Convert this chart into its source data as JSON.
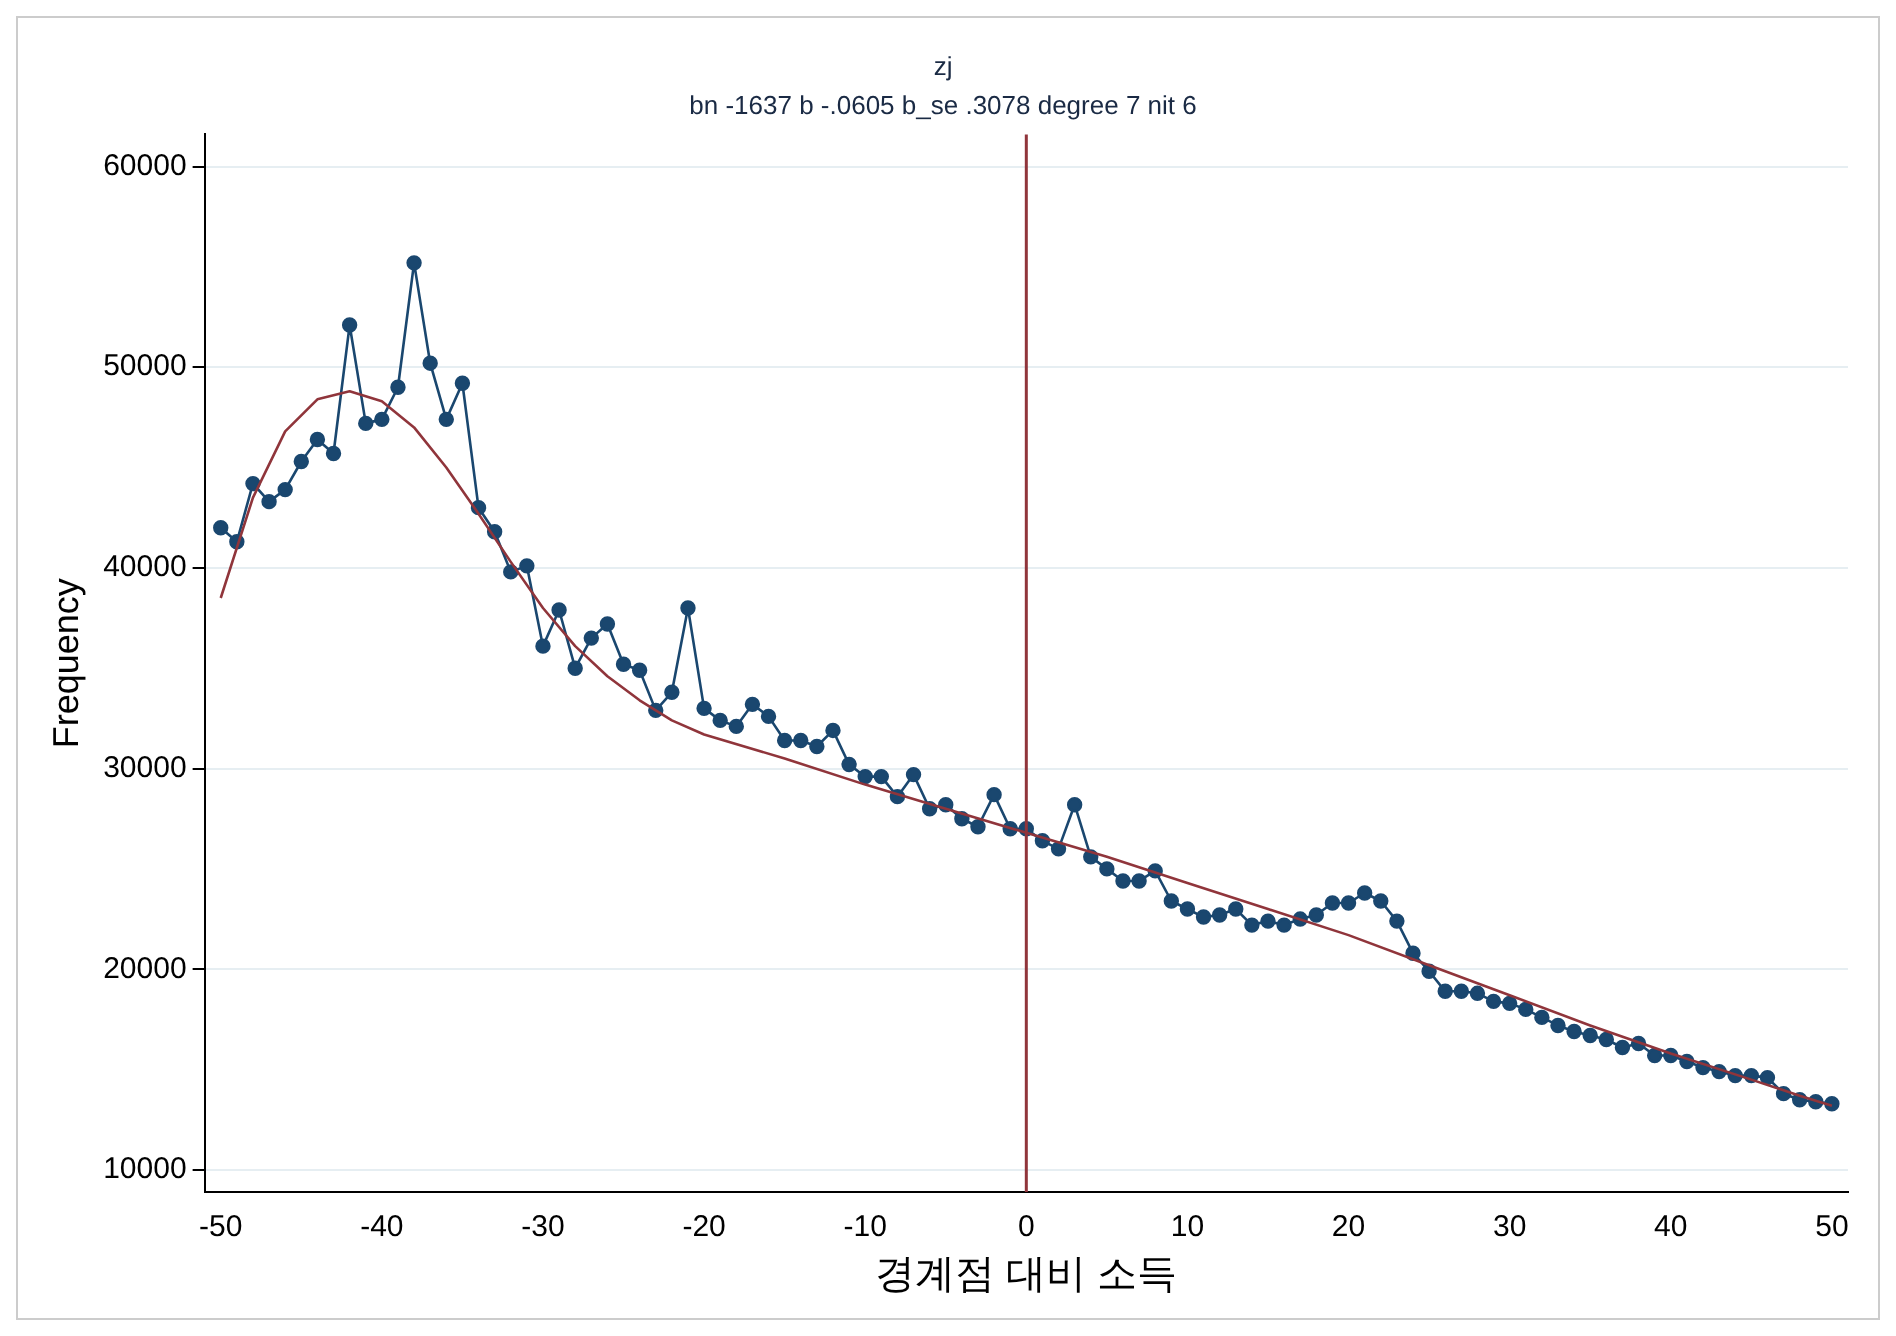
{
  "chart_data": {
    "type": "line",
    "title": "zj",
    "subtitle": "bn -1637 b -.0605 b_se .3078 degree 7 nit 6",
    "xlabel": "경계점 대비 소득",
    "ylabel": "Frequency",
    "x": [
      -50,
      -49,
      -48,
      -47,
      -46,
      -45,
      -44,
      -43,
      -42,
      -41,
      -40,
      -39,
      -38,
      -37,
      -36,
      -35,
      -34,
      -33,
      -32,
      -31,
      -30,
      -29,
      -28,
      -27,
      -26,
      -25,
      -24,
      -23,
      -22,
      -21,
      -20,
      -19,
      -18,
      -17,
      -16,
      -15,
      -14,
      -13,
      -12,
      -11,
      -10,
      -9,
      -8,
      -7,
      -6,
      -5,
      -4,
      -3,
      -2,
      -1,
      0,
      1,
      2,
      3,
      4,
      5,
      6,
      7,
      8,
      9,
      10,
      11,
      12,
      13,
      14,
      15,
      16,
      17,
      18,
      19,
      20,
      21,
      22,
      23,
      24,
      25,
      26,
      27,
      28,
      29,
      30,
      31,
      32,
      33,
      34,
      35,
      36,
      37,
      38,
      39,
      40,
      41,
      42,
      43,
      44,
      45,
      46,
      47,
      48,
      49,
      50
    ],
    "series": [
      {
        "color": "#1a476f",
        "marker": "circle",
        "values": [
          42000,
          41300,
          44200,
          43300,
          43900,
          45300,
          46400,
          45700,
          52100,
          47200,
          47400,
          49000,
          55200,
          50200,
          47400,
          49200,
          43000,
          41800,
          39800,
          40100,
          36100,
          37900,
          35000,
          36500,
          37200,
          35200,
          34900,
          32900,
          33800,
          38000,
          33000,
          32400,
          32100,
          33200,
          32600,
          31400,
          31400,
          31100,
          31900,
          30200,
          29600,
          29600,
          28600,
          29700,
          28000,
          28200,
          27500,
          27100,
          28700,
          27000,
          27000,
          26400,
          26000,
          28200,
          25600,
          25000,
          24400,
          24400,
          24900,
          23400,
          23000,
          22600,
          22700,
          23000,
          22200,
          22400,
          22200,
          22500,
          22700,
          23300,
          23300,
          23800,
          23400,
          22400,
          20800,
          19900,
          18900,
          18900,
          18800,
          18400,
          18300,
          18000,
          17600,
          17200,
          16900,
          16700,
          16500,
          16100,
          16300,
          15700,
          15700,
          15400,
          15100,
          14900,
          14700,
          14700,
          14600,
          13800,
          13500,
          13400,
          13300
        ]
      },
      {
        "color": "#90353b",
        "marker": "none",
        "x": [
          -50,
          -48,
          -46,
          -44,
          -42,
          -40,
          -38,
          -36,
          -34,
          -32,
          -30,
          -28,
          -26,
          -24,
          -22,
          -20,
          -15,
          -10,
          -5,
          0,
          5,
          10,
          15,
          20,
          25,
          30,
          35,
          40,
          45,
          48,
          50
        ],
        "values": [
          38500,
          43500,
          46800,
          48400,
          48800,
          48300,
          47000,
          45000,
          42700,
          40300,
          38000,
          36100,
          34600,
          33400,
          32400,
          31700,
          30500,
          29200,
          28000,
          26800,
          25600,
          24300,
          23000,
          21700,
          20200,
          18700,
          17200,
          15800,
          14500,
          13700,
          13200
        ]
      }
    ],
    "xlim": [
      -51,
      51
    ],
    "xticks": [
      -50,
      -40,
      -30,
      -20,
      -10,
      0,
      10,
      20,
      30,
      40,
      50
    ],
    "ylim": [
      8900,
      61600
    ],
    "yticks": [
      10000,
      20000,
      30000,
      40000,
      50000,
      60000
    ],
    "grid": "y",
    "legend": false,
    "ref_lines": [
      {
        "axis": "x",
        "value": 0,
        "color": "#90353b"
      }
    ]
  }
}
